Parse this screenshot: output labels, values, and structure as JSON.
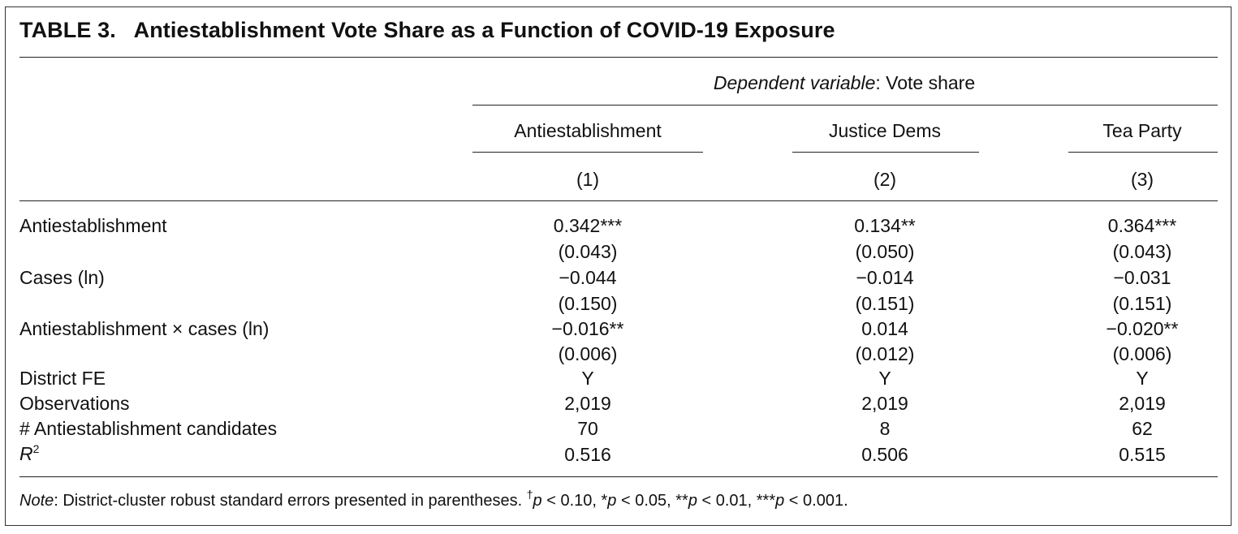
{
  "title": "TABLE 3.   Antiestablishment Vote Share as a Function of COVID-19 Exposure",
  "header": {
    "dep_var_label": "Dependent variable",
    "dep_var_value": ": Vote share",
    "groups": [
      "Antiestablishment",
      "Justice Dems",
      "Tea Party"
    ],
    "model_numbers": [
      "(1)",
      "(2)",
      "(3)"
    ]
  },
  "rows": [
    {
      "label": "Antiestablishment",
      "values": [
        "0.342***",
        "0.134**",
        "0.364***"
      ]
    },
    {
      "label": "",
      "values": [
        "(0.043)",
        "(0.050)",
        "(0.043)"
      ]
    },
    {
      "label": "Cases (ln)",
      "values": [
        "−0.044",
        "−0.014",
        "−0.031"
      ]
    },
    {
      "label": "",
      "values": [
        "(0.150)",
        "(0.151)",
        "(0.151)"
      ]
    },
    {
      "label": "Antiestablishment × cases (ln)",
      "values": [
        "−0.016**",
        "0.014",
        "−0.020**"
      ]
    },
    {
      "label": "",
      "values": [
        "(0.006)",
        "(0.012)",
        "(0.006)"
      ]
    },
    {
      "label": "District FE",
      "values": [
        "Y",
        "Y",
        "Y"
      ]
    },
    {
      "label": "Observations",
      "values": [
        "2,019",
        "2,019",
        "2,019"
      ]
    },
    {
      "label": "# Antiestablishment candidates",
      "values": [
        "70",
        "8",
        "62"
      ]
    },
    {
      "label_base": "R",
      "label_sup": "2",
      "values": [
        "0.516",
        "0.506",
        "0.515"
      ]
    }
  ],
  "note": {
    "label": "Note",
    "text": ": District-cluster robust standard errors presented in parentheses. ",
    "dagger": "†",
    "p": "p",
    "t1": " < 0.10, *",
    "t2": " < 0.05, **",
    "t3": " < 0.01, ***",
    "t4": " < 0.001."
  }
}
